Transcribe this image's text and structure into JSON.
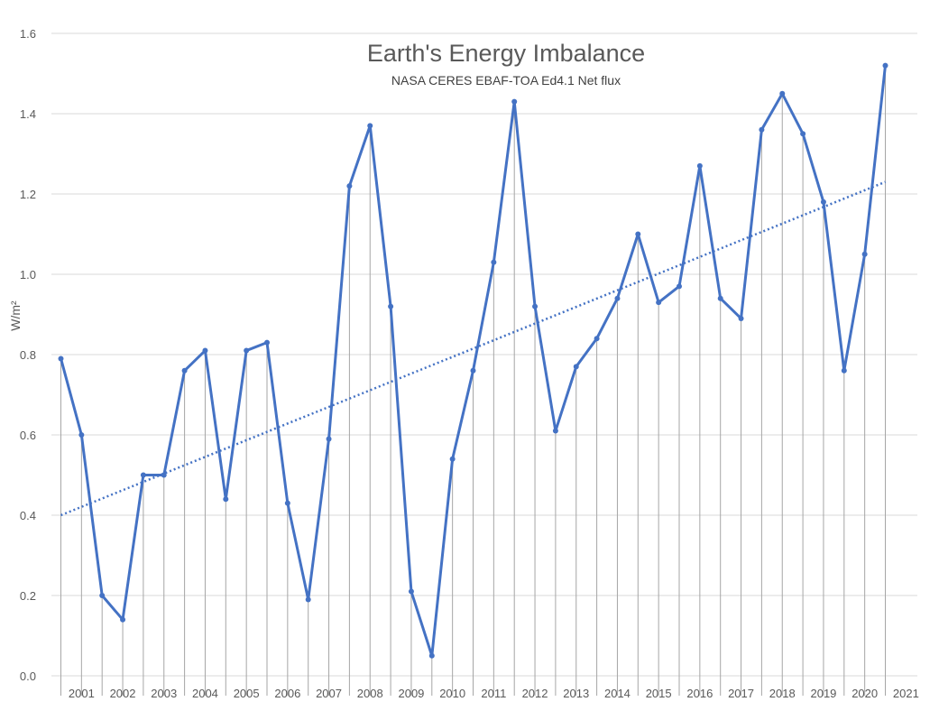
{
  "chart_data": {
    "type": "line",
    "title": "Earth's Energy Imbalance",
    "subtitle": "NASA CERES EBAF-TOA Ed4.1 Net flux",
    "xlabel": "",
    "ylabel": "W/m²",
    "ylim": [
      0,
      1.6
    ],
    "yticks": [
      "0.0",
      "0.2",
      "0.4",
      "0.6",
      "0.8",
      "1.0",
      "1.2",
      "1.4",
      "1.6"
    ],
    "grid": "horizontal",
    "x_labels": [
      "2001",
      "2002",
      "2003",
      "2004",
      "2005",
      "2006",
      "2007",
      "2008",
      "2009",
      "2010",
      "2011",
      "2012",
      "2013",
      "2014",
      "2015",
      "2016",
      "2017",
      "2018",
      "2019",
      "2020",
      "2021"
    ],
    "series": [
      {
        "color": "#4472c4",
        "style": "solid with markers, vertical drop lines",
        "values": [
          0.79,
          0.6,
          0.2,
          0.14,
          0.5,
          0.5,
          0.76,
          0.81,
          0.44,
          0.81,
          0.83,
          0.43,
          0.19,
          0.59,
          1.22,
          1.37,
          0.92,
          0.21,
          0.05,
          0.54,
          0.76,
          1.03,
          1.43,
          0.92,
          0.61,
          0.77,
          0.84,
          0.94,
          1.1,
          0.93,
          0.97,
          1.27,
          0.94,
          0.89,
          1.36,
          1.45,
          1.35,
          1.18,
          0.76,
          1.05,
          1.52
        ]
      }
    ],
    "trendline": {
      "color": "#4472c4",
      "style": "dotted linear",
      "start": 0.4,
      "end": 1.23
    }
  }
}
